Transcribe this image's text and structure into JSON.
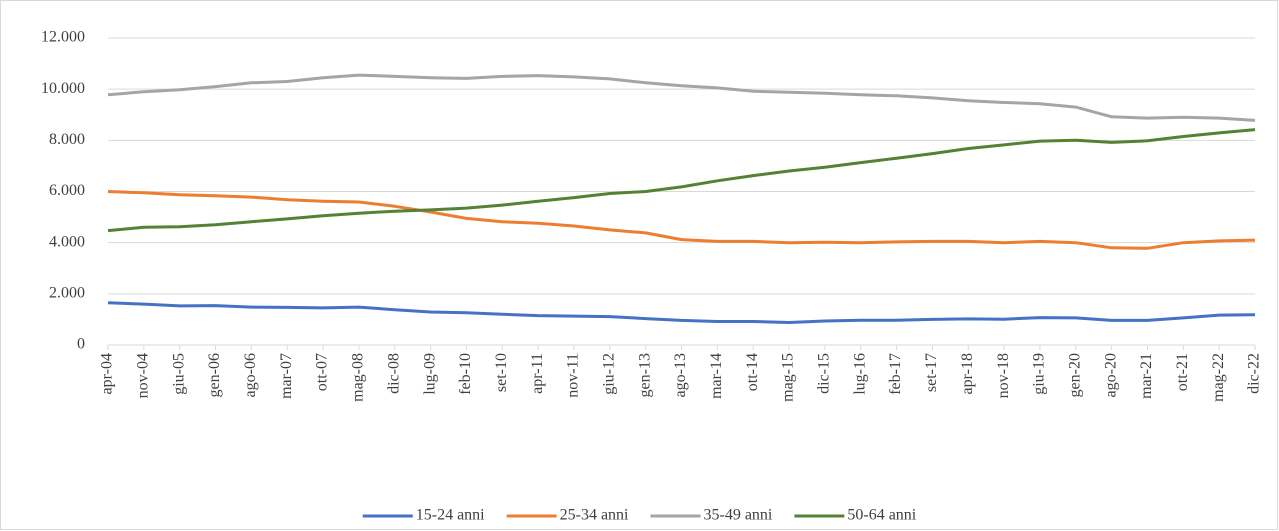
{
  "chart_data": {
    "type": "line",
    "categories": [
      "apr-04",
      "nov-04",
      "giu-05",
      "gen-06",
      "ago-06",
      "mar-07",
      "ott-07",
      "mag-08",
      "dic-08",
      "lug-09",
      "feb-10",
      "set-10",
      "apr-11",
      "nov-11",
      "giu-12",
      "gen-13",
      "ago-13",
      "mar-14",
      "ott-14",
      "mag-15",
      "dic-15",
      "lug-16",
      "feb-17",
      "set-17",
      "apr-18",
      "nov-18",
      "giu-19",
      "gen-20",
      "ago-20",
      "mar-21",
      "ott-21",
      "mag-22",
      "dic-22"
    ],
    "series": [
      {
        "name": "15-24 anni",
        "color": "#4472c4",
        "values": [
          1650,
          1600,
          1530,
          1540,
          1480,
          1470,
          1450,
          1480,
          1380,
          1290,
          1260,
          1200,
          1150,
          1130,
          1110,
          1030,
          960,
          920,
          920,
          880,
          940,
          970,
          970,
          1000,
          1020,
          1010,
          1070,
          1060,
          960,
          960,
          1060,
          1170,
          1180
        ]
      },
      {
        "name": "25-34 anni",
        "color": "#ed7d31",
        "values": [
          6000,
          5950,
          5870,
          5830,
          5780,
          5680,
          5620,
          5590,
          5420,
          5200,
          4950,
          4820,
          4760,
          4650,
          4500,
          4380,
          4120,
          4050,
          4050,
          4000,
          4020,
          4000,
          4030,
          4050,
          4050,
          4000,
          4050,
          4000,
          3800,
          3780,
          4000,
          4070,
          4100
        ]
      },
      {
        "name": "35-49 anni",
        "color": "#a5a5a5",
        "values": [
          9780,
          9900,
          9980,
          10100,
          10250,
          10300,
          10450,
          10550,
          10500,
          10450,
          10420,
          10500,
          10530,
          10480,
          10400,
          10250,
          10130,
          10050,
          9920,
          9880,
          9840,
          9780,
          9740,
          9660,
          9550,
          9480,
          9430,
          9300,
          8920,
          8870,
          8900,
          8870,
          8780
        ]
      },
      {
        "name": "50-64 anni",
        "color": "#548235",
        "values": [
          4470,
          4600,
          4620,
          4700,
          4820,
          4930,
          5050,
          5150,
          5230,
          5280,
          5350,
          5470,
          5620,
          5760,
          5920,
          6000,
          6180,
          6420,
          6620,
          6800,
          6950,
          7130,
          7300,
          7480,
          7680,
          7820,
          7970,
          8000,
          7920,
          7980,
          8150,
          8290,
          8420
        ]
      }
    ],
    "ylim": [
      0,
      12000
    ],
    "yticks": [
      0,
      {
        "value": 2000,
        "label": "2.000"
      },
      {
        "value": 4000,
        "label": "4.000"
      },
      {
        "value": 6000,
        "label": "6.000"
      },
      {
        "value": 8000,
        "label": "8.000"
      },
      {
        "value": 10000,
        "label": "10.000"
      },
      {
        "value": 12000,
        "label": "12.000"
      }
    ],
    "grid": true,
    "legend": "bottom"
  }
}
